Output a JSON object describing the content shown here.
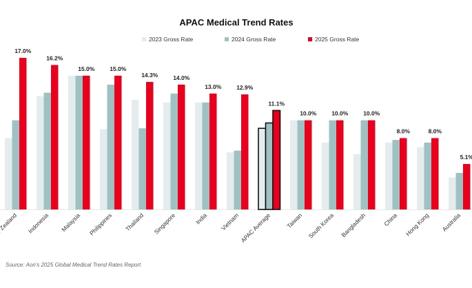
{
  "chart_data": {
    "type": "bar",
    "title": "APAC Medical Trend Rates",
    "categories": [
      "New Zealand",
      "Indonesia",
      "Malaysia",
      "Philippines",
      "Thailand",
      "Singapore",
      "India",
      "Vietnam",
      "APAC Average",
      "Taiwan",
      "South Korea",
      "Bangladesh",
      "China",
      "Hong Kong",
      "Australia"
    ],
    "highlight_category": "APAC Average",
    "series": [
      {
        "name": "2023 Gross Rate",
        "color": "#e4eced",
        "values": [
          8.0,
          12.7,
          15.0,
          9.0,
          12.3,
          12.0,
          12.0,
          6.4,
          9.1,
          10.0,
          7.5,
          6.2,
          7.5,
          7.0,
          3.6
        ]
      },
      {
        "name": "2024 Gross Rate",
        "color": "#9fc1c4",
        "values": [
          10.0,
          13.1,
          15.0,
          14.0,
          9.1,
          13.0,
          12.0,
          6.6,
          9.7,
          10.0,
          10.0,
          10.0,
          7.8,
          7.5,
          4.1
        ]
      },
      {
        "name": "2025 Gross Rate",
        "color": "#e8001c",
        "values": [
          17.0,
          16.2,
          15.0,
          15.0,
          14.3,
          14.0,
          13.0,
          12.9,
          11.1,
          10.0,
          10.0,
          10.0,
          8.0,
          8.0,
          5.1
        ]
      }
    ],
    "data_labels": [
      "17.0%",
      "16.2%",
      "15.0%",
      "15.0%",
      "14.3%",
      "14.0%",
      "13.0%",
      "12.9%",
      "11.1%",
      "10.0%",
      "10.0%",
      "10.0%",
      "8.0%",
      "8.0%",
      "5.1%"
    ],
    "xlabel": "",
    "ylabel": "",
    "ylim": [
      0,
      17
    ],
    "grid": false,
    "legend": "top"
  },
  "source": "Source: Aon's 2025 Global Medical Trend Rates Report"
}
